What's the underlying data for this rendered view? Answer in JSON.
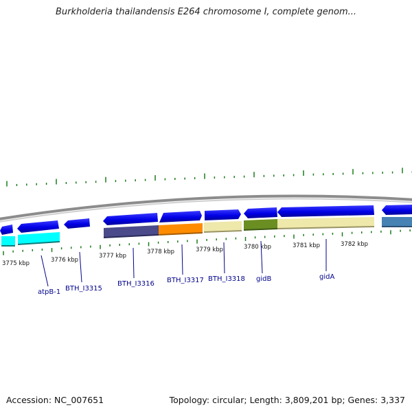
{
  "title": "Burkholderia thailandensis E264 chromosome I, complete genom...",
  "footer": {
    "accession": "Accession: NC_007651",
    "summary": "Topology: circular; Length: 3,809,201 bp; Genes: 3,337"
  },
  "colors": {
    "backbone": "#8c8c8c",
    "forward_gene": "#0000ff",
    "tick": "#1a7a1a",
    "gene_label": "#00008b"
  },
  "scale_ticks": [
    {
      "label": "3775 kbp",
      "kbp": 3775
    },
    {
      "label": "3776 kbp",
      "kbp": 3776
    },
    {
      "label": "3777 kbp",
      "kbp": 3777
    },
    {
      "label": "3778 kbp",
      "kbp": 3778
    },
    {
      "label": "3779 kbp",
      "kbp": 3779
    },
    {
      "label": "3780 kbp",
      "kbp": 3780
    },
    {
      "label": "3781 kbp",
      "kbp": 3781
    },
    {
      "label": "3782 kbp",
      "kbp": 3782
    }
  ],
  "genes": [
    {
      "name": "atpB-1",
      "cog_color": "#00ffff"
    },
    {
      "name": "BTH_I3315",
      "cog_color": null
    },
    {
      "name": "BTH_I3316",
      "cog_color": "#4b4a8a"
    },
    {
      "name": "BTH_I3317",
      "cog_color": "#ff8c00"
    },
    {
      "name": "BTH_I3318",
      "cog_color": "#eee8aa"
    },
    {
      "name": "gidB",
      "cog_color": "#6b8e23"
    },
    {
      "name": "gidA",
      "cog_color": "#eee8aa"
    },
    {
      "name": "",
      "cog_color": "#4682b4"
    }
  ]
}
